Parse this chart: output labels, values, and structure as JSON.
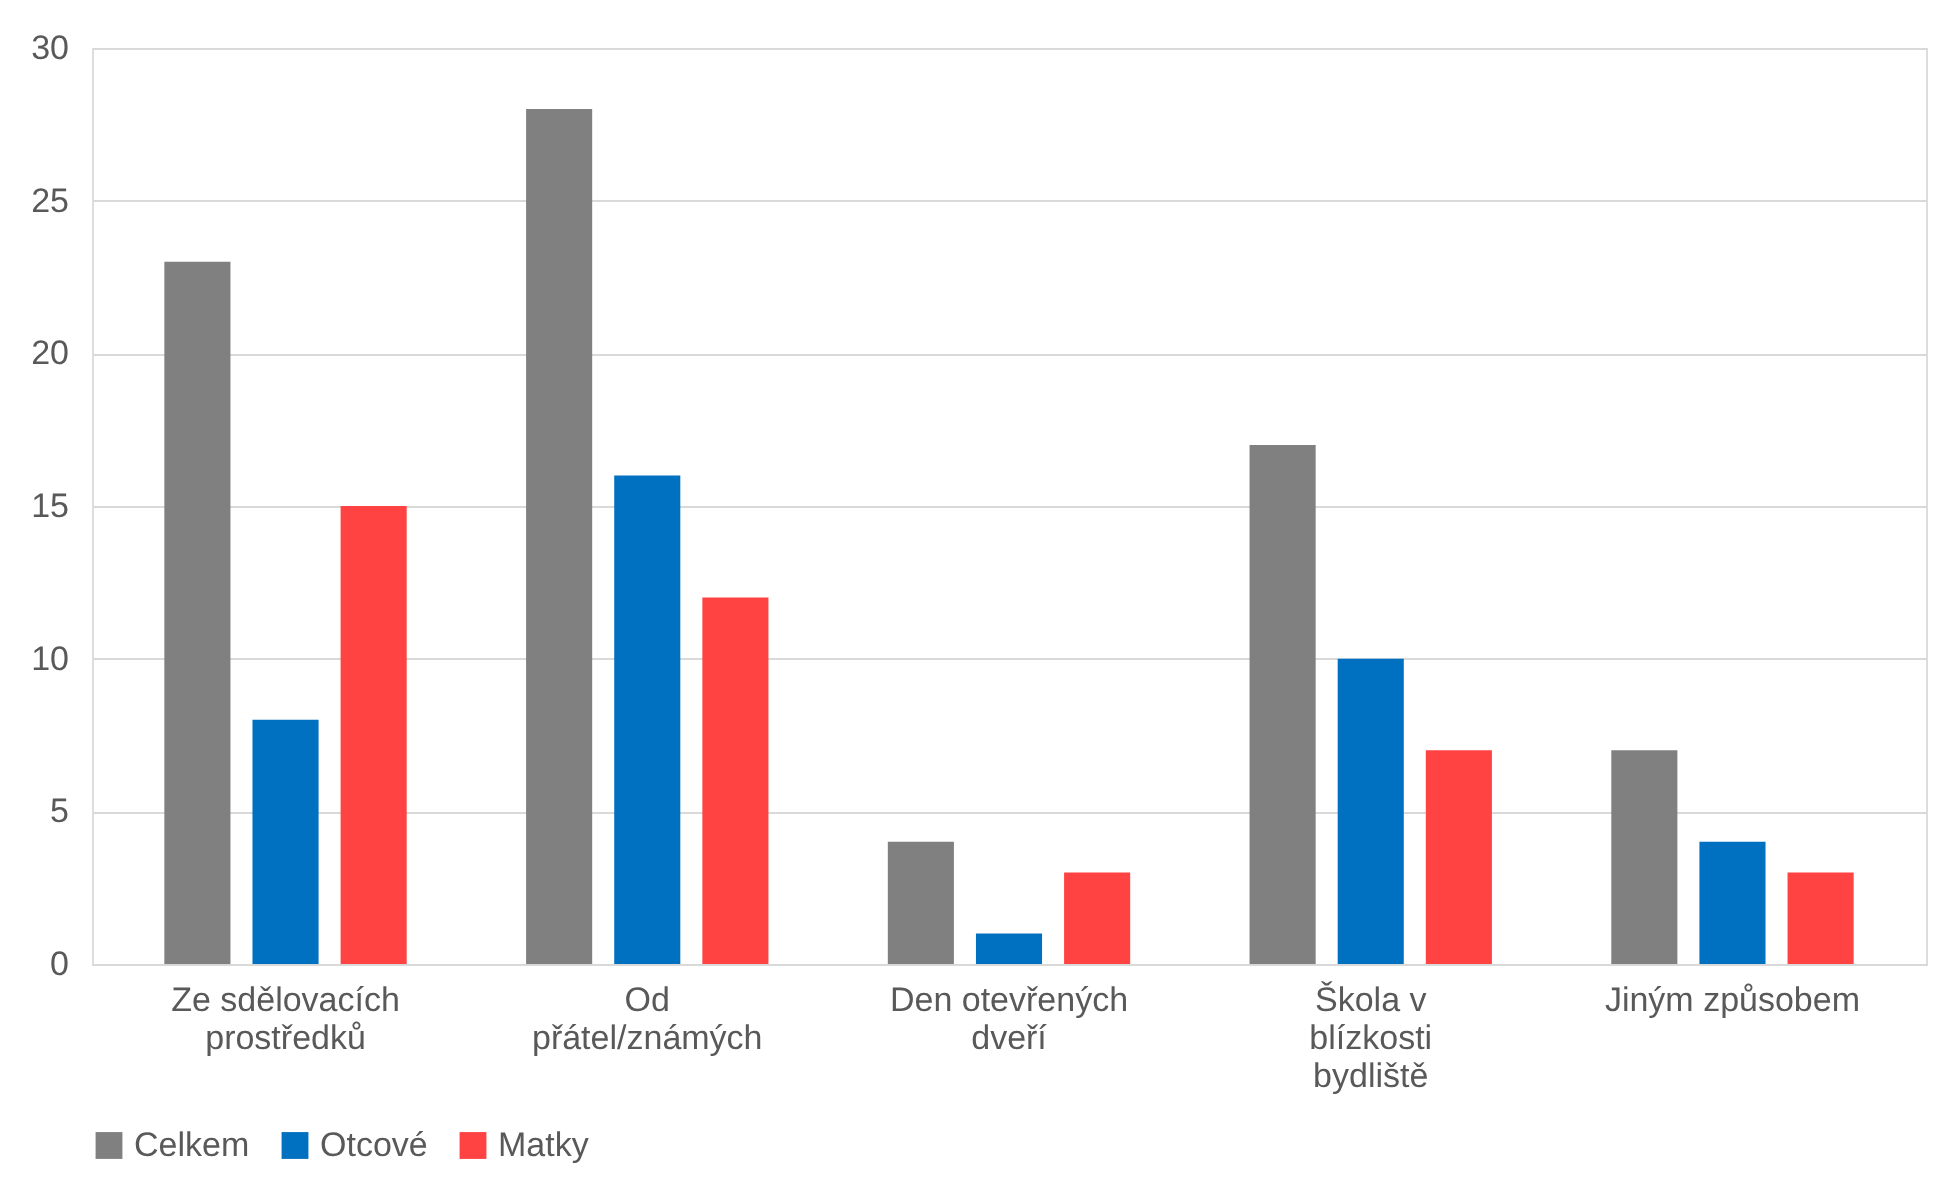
{
  "chart_data": {
    "type": "bar",
    "categories": [
      "Ze sdělovacích prostředků",
      "Od přátel/známých",
      "Den otevřených dveří",
      "Škola v blízkosti bydliště",
      "Jiným způsobem"
    ],
    "series": [
      {
        "name": "Celkem",
        "color": "#808080",
        "values": [
          23,
          28,
          4,
          17,
          7
        ]
      },
      {
        "name": "Otcové",
        "color": "#0070c0",
        "values": [
          8,
          16,
          1,
          10,
          4
        ]
      },
      {
        "name": "Matky",
        "color": "#ff4343",
        "values": [
          15,
          12,
          3,
          7,
          3
        ]
      }
    ],
    "ylim": [
      0,
      30
    ],
    "yticks": [
      0,
      5,
      10,
      15,
      20,
      25,
      30
    ],
    "grid": "y",
    "legend": "bottom"
  }
}
